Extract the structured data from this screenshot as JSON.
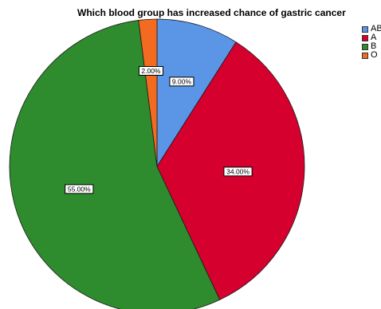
{
  "chart_data": {
    "type": "pie",
    "title": "Which blood group has increased chance of gastric cancer",
    "categories": [
      "AB",
      "A",
      "B",
      "O"
    ],
    "values": [
      9.0,
      34.0,
      55.0,
      2.0
    ],
    "labels": [
      "9.00%",
      "34.00%",
      "55.00%",
      "2.00%"
    ],
    "colors": [
      "#5b95e6",
      "#d6002e",
      "#2e8b2e",
      "#f36b21"
    ],
    "legend": "top-right"
  }
}
